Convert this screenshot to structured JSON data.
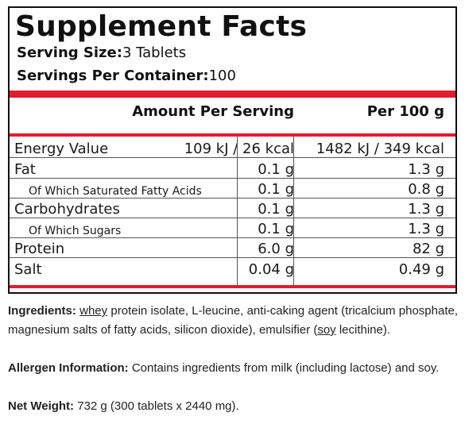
{
  "title": "Supplement Facts",
  "serving_size": {
    "label": "Serving Size:",
    "value": "3 Tablets"
  },
  "servings_per_container": {
    "label": "Servings Per Container:",
    "value": "100"
  },
  "columns": {
    "amount_per_serving": "Amount Per Serving",
    "per_100g": "Per 100 g"
  },
  "rows": [
    {
      "name": "Energy Value",
      "per_serving": "109 kJ / 26 kcal",
      "per_100g": "1482 kJ / 349 kcal"
    },
    {
      "name": "Fat",
      "per_serving": "0.1 g",
      "per_100g": "1.3 g"
    },
    {
      "name": "Of Which Saturated Fatty Acids",
      "per_serving": "0.1 g",
      "per_100g": "0.8 g"
    },
    {
      "name": "Carbohydrates",
      "per_serving": "0.1 g",
      "per_100g": "1.3 g"
    },
    {
      "name": "Of Which Sugars",
      "per_serving": "0.1 g",
      "per_100g": "1.3 g"
    },
    {
      "name": "Protein",
      "per_serving": "6.0 g",
      "per_100g": "82 g"
    },
    {
      "name": "Salt",
      "per_serving": "0.04 g",
      "per_100g": "0.49 g"
    }
  ],
  "ingredients": {
    "label": "Ingredients:",
    "whey": "whey",
    "text1": " protein isolate, L-leucine, anti-caking agent (tricalcium phosphate, magnesium salts of fatty acids, silicon dioxide), emulsifier (",
    "soy": "soy",
    "text2": " lecithine)."
  },
  "allergen": {
    "label": "Allergen Information:",
    "text": " Contains ingredients from milk (including lactose) and soy."
  },
  "net_weight": {
    "label": "Net Weight:",
    "text": " 732 g (300 tablets x 2440 mg)."
  },
  "colors": {
    "accent_red": "#e01c2f",
    "border": "#111111"
  }
}
